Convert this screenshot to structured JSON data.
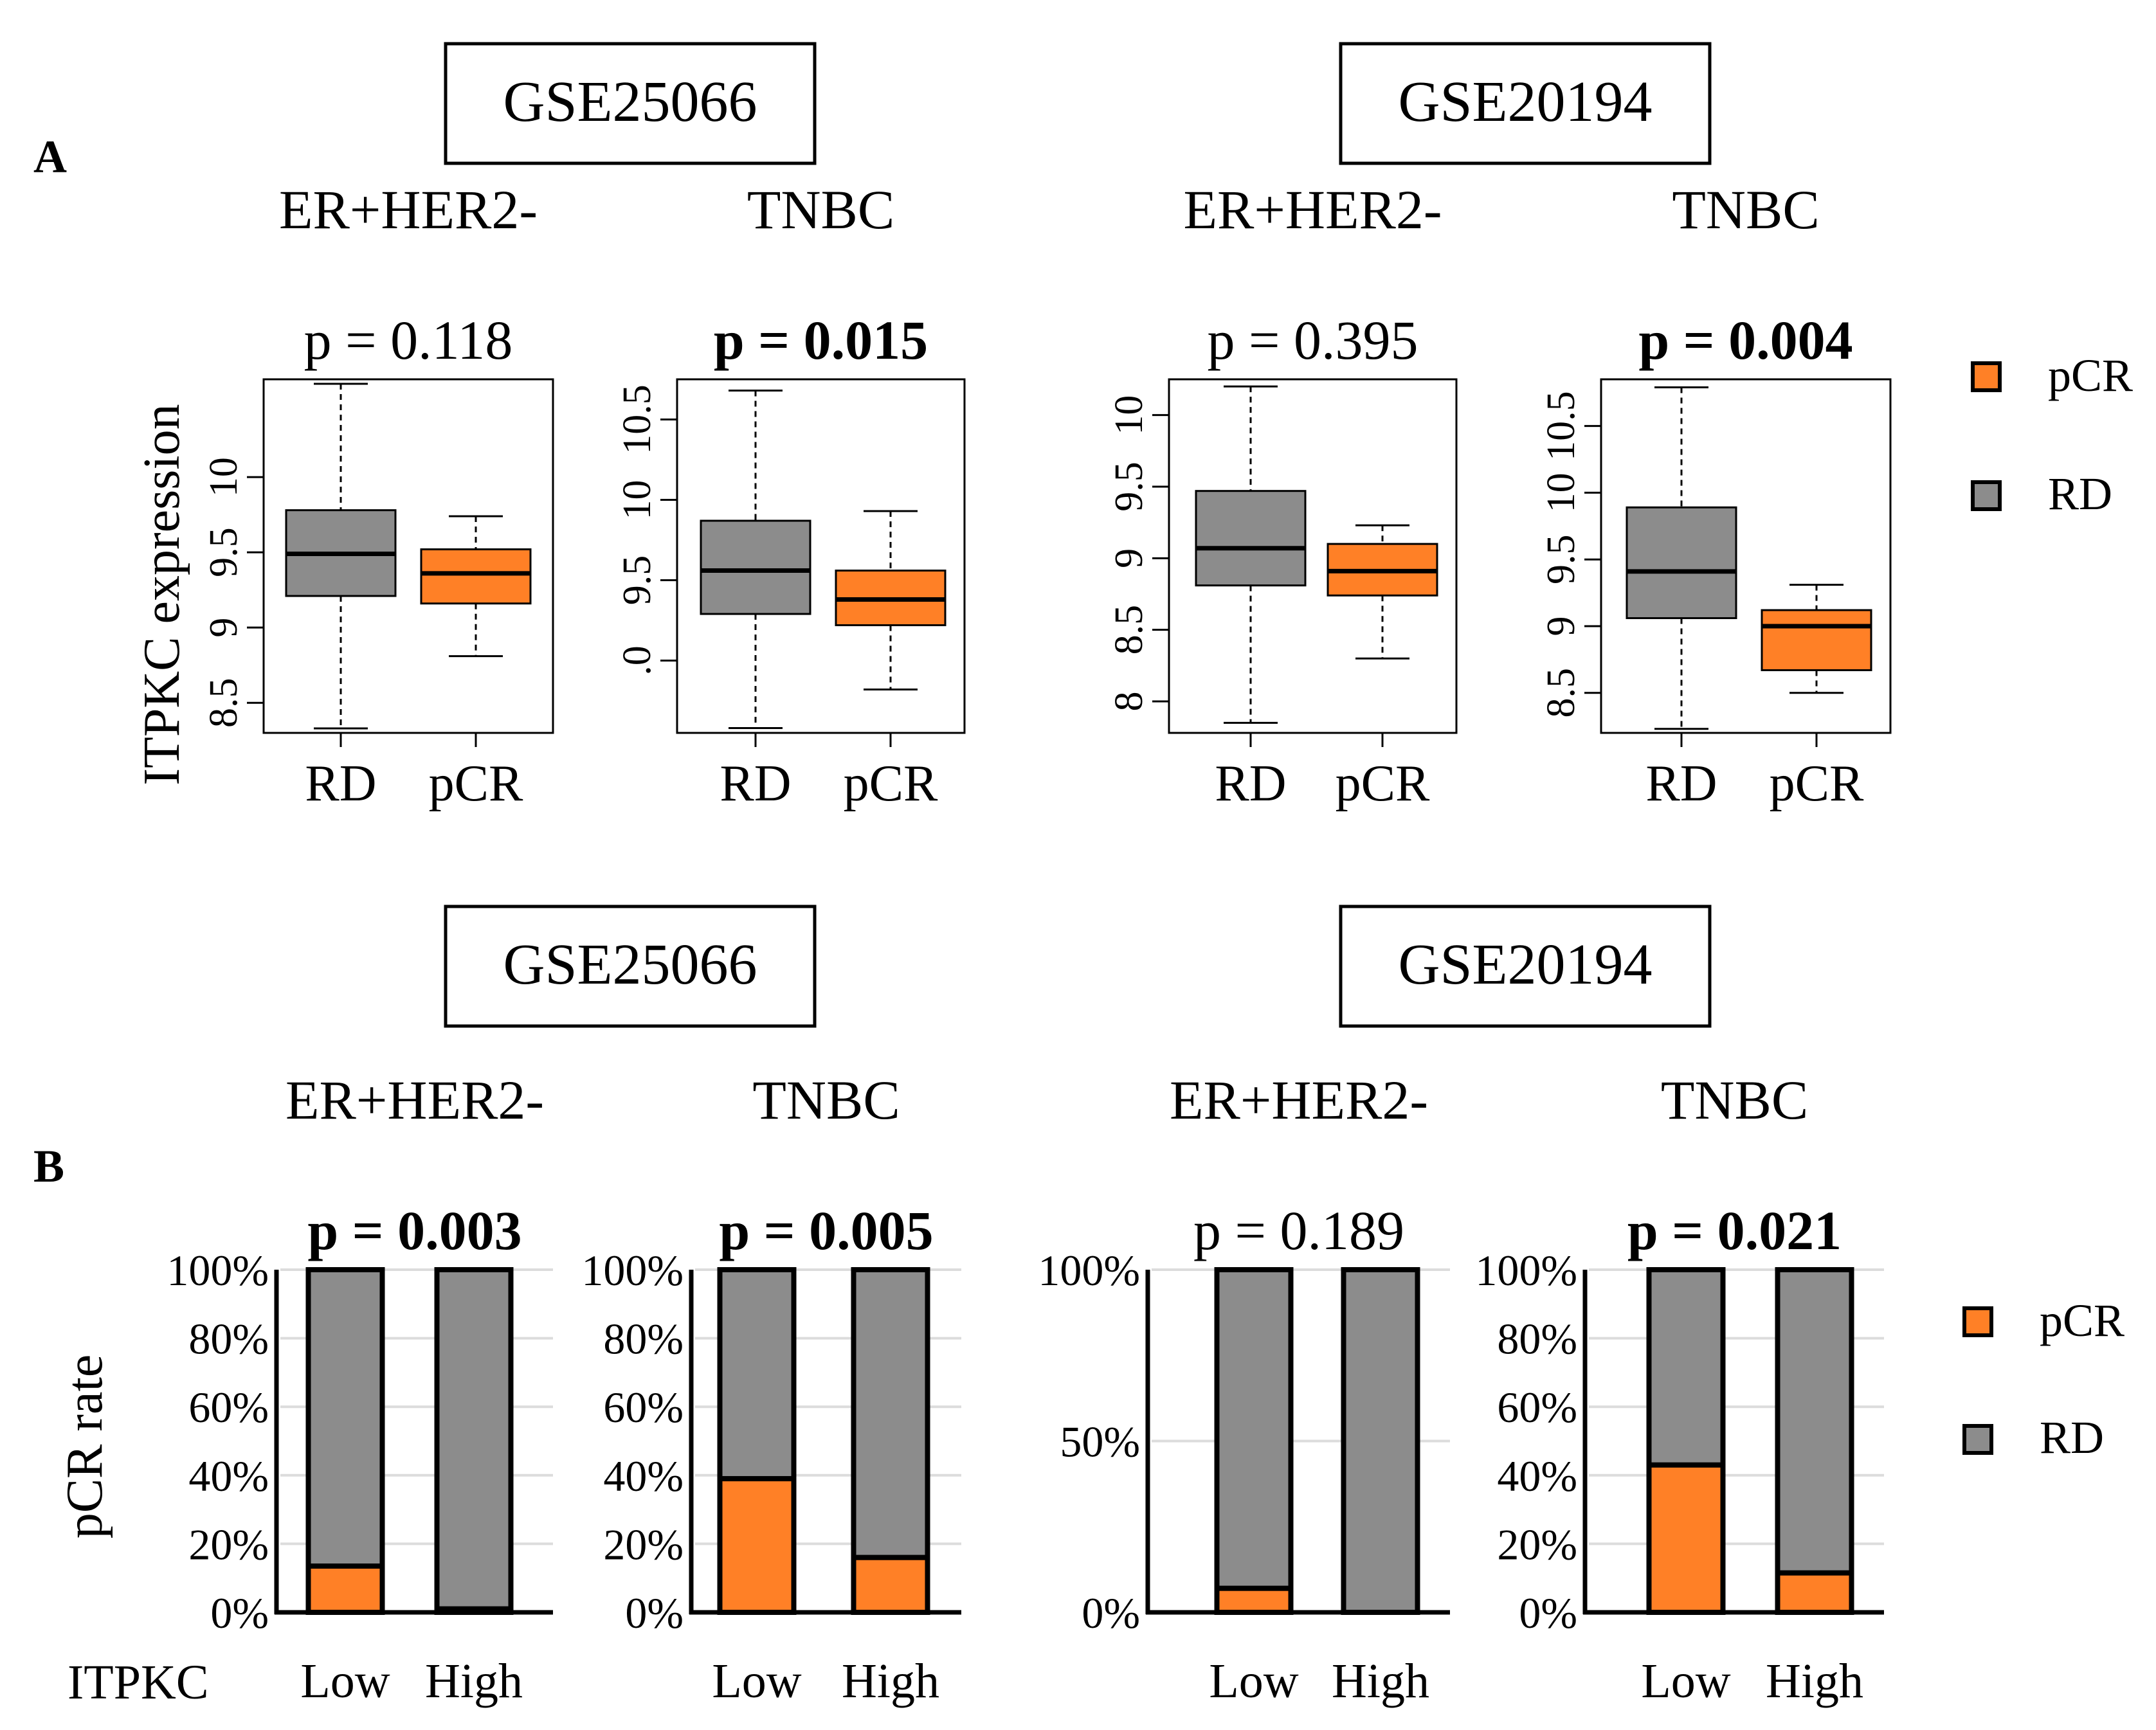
{
  "colors": {
    "pcr": "#FF8026",
    "rd": "#8C8C8C",
    "grid": "#DCDCDC",
    "ink": "#000000"
  },
  "labels": {
    "panel_a": "A",
    "panel_b": "B",
    "y_label_a": "ITPKC expression",
    "y_label_b": "pCR rate",
    "x_row_label_b": "ITPKC"
  },
  "datasets": [
    "GSE25066",
    "GSE20194",
    "GSE25066",
    "GSE20194"
  ],
  "legend": {
    "items": [
      "pCR",
      "RD"
    ]
  },
  "chart_data": [
    {
      "type": "box",
      "panel": "A",
      "dataset": "GSE25066",
      "subtitle": "ER+HER2-",
      "pvalue": "p = 0.118",
      "significant": false,
      "categories": [
        "RD",
        "pCR"
      ],
      "ylim": [
        8.3,
        10.65
      ],
      "ticks": [
        "8.5",
        "9",
        "9.5",
        "10"
      ],
      "series": [
        {
          "name": "RD",
          "whisker_low": 8.33,
          "q1": 9.21,
          "median": 9.49,
          "q3": 9.78,
          "whisker_high": 10.62
        },
        {
          "name": "pCR",
          "whisker_low": 8.81,
          "q1": 9.16,
          "median": 9.36,
          "q3": 9.52,
          "whisker_high": 9.74
        }
      ]
    },
    {
      "type": "box",
      "panel": "A",
      "dataset": "GSE25066",
      "subtitle": "TNBC",
      "pvalue": "p = 0.015",
      "significant": true,
      "categories": [
        "RD",
        "pCR"
      ],
      "ylim": [
        8.55,
        10.75
      ],
      "ticks": [
        ".0",
        "9.5",
        "10",
        "10.5"
      ],
      "series": [
        {
          "name": "RD",
          "whisker_low": 8.58,
          "q1": 9.29,
          "median": 9.56,
          "q3": 9.87,
          "whisker_high": 10.68
        },
        {
          "name": "pCR",
          "whisker_low": 8.82,
          "q1": 9.22,
          "median": 9.38,
          "q3": 9.56,
          "whisker_high": 9.93
        }
      ]
    },
    {
      "type": "box",
      "panel": "A",
      "dataset": "GSE20194",
      "subtitle": "ER+HER2-",
      "pvalue": "p = 0.395",
      "significant": false,
      "categories": [
        "RD",
        "pCR"
      ],
      "ylim": [
        7.78,
        10.25
      ],
      "ticks": [
        "8",
        "8.5",
        "9",
        "9.5",
        "10"
      ],
      "series": [
        {
          "name": "RD",
          "whisker_low": 7.85,
          "q1": 8.81,
          "median": 9.07,
          "q3": 9.47,
          "whisker_high": 10.2
        },
        {
          "name": "pCR",
          "whisker_low": 8.3,
          "q1": 8.74,
          "median": 8.91,
          "q3": 9.1,
          "whisker_high": 9.23
        }
      ]
    },
    {
      "type": "box",
      "panel": "A",
      "dataset": "GSE20194",
      "subtitle": "TNBC",
      "pvalue": "p = 0.004",
      "significant": true,
      "categories": [
        "RD",
        "pCR"
      ],
      "ylim": [
        8.2,
        10.85
      ],
      "ticks": [
        "8.5",
        "9",
        "9.5",
        "10",
        "10.5"
      ],
      "series": [
        {
          "name": "RD",
          "whisker_low": 8.23,
          "q1": 9.06,
          "median": 9.41,
          "q3": 9.89,
          "whisker_high": 10.79
        },
        {
          "name": "pCR",
          "whisker_low": 8.5,
          "q1": 8.67,
          "median": 9.0,
          "q3": 9.12,
          "whisker_high": 9.31
        }
      ]
    },
    {
      "type": "bar",
      "stacked": true,
      "panel": "B",
      "dataset": "GSE25066",
      "subtitle": "ER+HER2-",
      "pvalue": "p = 0.003",
      "significant": true,
      "categories": [
        "Low",
        "High"
      ],
      "ylim": [
        0,
        100
      ],
      "ticks": [
        "0%",
        "20%",
        "40%",
        "60%",
        "80%",
        "100%"
      ],
      "series": [
        {
          "name": "pCR",
          "values": [
            13.5,
            1
          ]
        },
        {
          "name": "RD",
          "values": [
            86.5,
            99
          ]
        }
      ]
    },
    {
      "type": "bar",
      "stacked": true,
      "panel": "B",
      "dataset": "GSE25066",
      "subtitle": "TNBC",
      "pvalue": "p = 0.005",
      "significant": true,
      "categories": [
        "Low",
        "High"
      ],
      "ylim": [
        0,
        100
      ],
      "ticks": [
        "0%",
        "20%",
        "40%",
        "60%",
        "80%",
        "100%"
      ],
      "series": [
        {
          "name": "pCR",
          "values": [
            39,
            16
          ]
        },
        {
          "name": "RD",
          "values": [
            61,
            84
          ]
        }
      ]
    },
    {
      "type": "bar",
      "stacked": true,
      "panel": "B",
      "dataset": "GSE20194",
      "subtitle": "ER+HER2-",
      "pvalue": "p = 0.189",
      "significant": false,
      "categories": [
        "Low",
        "High"
      ],
      "ylim": [
        0,
        100
      ],
      "ticks": [
        "0%",
        "50%",
        "100%"
      ],
      "series": [
        {
          "name": "pCR",
          "values": [
            7,
            0
          ]
        },
        {
          "name": "RD",
          "values": [
            93,
            100
          ]
        }
      ]
    },
    {
      "type": "bar",
      "stacked": true,
      "panel": "B",
      "dataset": "GSE20194",
      "subtitle": "TNBC",
      "pvalue": "p = 0.021",
      "significant": true,
      "categories": [
        "Low",
        "High"
      ],
      "ylim": [
        0,
        100
      ],
      "ticks": [
        "0%",
        "20%",
        "40%",
        "60%",
        "80%",
        "100%"
      ],
      "series": [
        {
          "name": "pCR",
          "values": [
            43,
            11.5
          ]
        },
        {
          "name": "RD",
          "values": [
            57,
            88.5
          ]
        }
      ]
    }
  ]
}
